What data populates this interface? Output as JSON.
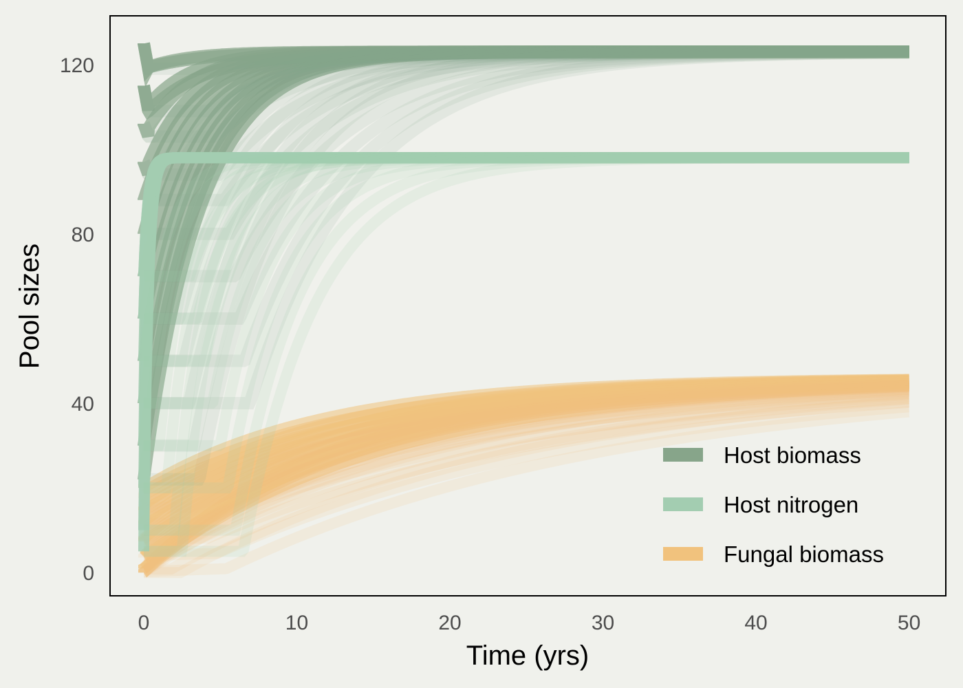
{
  "chart_data": {
    "type": "line",
    "xlabel": "Time (yrs)",
    "ylabel": "Pool sizes",
    "xlim": [
      -2.2,
      52.4
    ],
    "ylim": [
      -5.5,
      131.5
    ],
    "x_ticks": [
      0,
      10,
      20,
      30,
      40,
      50
    ],
    "y_ticks": [
      0,
      40,
      80,
      120
    ],
    "grid": false,
    "legend_position": "bottom-right",
    "series": [
      {
        "name": "Host biomass",
        "color": "#87a58a",
        "equilibrium": 123,
        "initial_values": [
          125,
          115,
          106,
          97,
          88,
          80,
          70,
          60,
          50,
          40,
          30,
          22
        ],
        "description_trajectories": "many overlapping runs converging to equilibrium"
      },
      {
        "name": "Host nitrogen",
        "color": "#a3cdb1",
        "equilibrium": 98,
        "initial_values": [
          70,
          60,
          50,
          40,
          30,
          20,
          10,
          5
        ]
      },
      {
        "name": "Fungal biomass",
        "color": "#f1c27d",
        "equilibrium": 46,
        "initial_values": [
          20,
          16,
          12,
          8,
          4,
          1,
          0
        ]
      }
    ]
  }
}
